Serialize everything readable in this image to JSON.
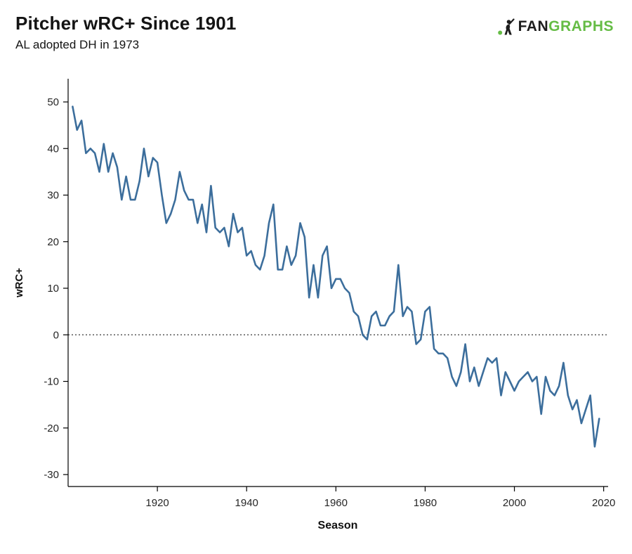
{
  "header": {
    "title": "Pitcher wRC+ Since 1901",
    "subtitle": "AL adopted DH in 1973"
  },
  "logo": {
    "text_dark": "FAN",
    "text_green": "GRAPHS",
    "dark_color": "#1d1d1d",
    "green_color": "#65bc45"
  },
  "chart_data": {
    "type": "line",
    "title": "Pitcher wRC+ Since 1901",
    "subtitle": "AL adopted DH in 1973",
    "xlabel": "Season",
    "ylabel": "wRC+",
    "x_start": 1901,
    "x_end": 2019,
    "xlim": [
      1900,
      2021
    ],
    "ylim": [
      -30,
      50
    ],
    "xticks": [
      1920,
      1940,
      1960,
      1980,
      2000,
      2020
    ],
    "yticks": [
      -30,
      -20,
      -10,
      0,
      10,
      20,
      30,
      40,
      50
    ],
    "grid": false,
    "legend": false,
    "reference_line": {
      "y": 0,
      "style": "dotted",
      "color": "#595959"
    },
    "line_color": "#3c6e9c",
    "values": [
      49,
      44,
      46,
      39,
      40,
      39,
      35,
      41,
      35,
      39,
      36,
      29,
      34,
      29,
      29,
      33,
      40,
      34,
      38,
      37,
      30,
      24,
      26,
      29,
      35,
      31,
      29,
      29,
      24,
      28,
      22,
      32,
      23,
      22,
      23,
      19,
      26,
      22,
      23,
      17,
      18,
      15,
      14,
      17,
      24,
      28,
      14,
      14,
      19,
      15,
      17,
      24,
      21,
      8,
      15,
      8,
      17,
      19,
      10,
      12,
      12,
      10,
      9,
      5,
      4,
      0,
      -1,
      4,
      5,
      2,
      2,
      4,
      5,
      15,
      4,
      6,
      5,
      -2,
      -1,
      5,
      6,
      -3,
      -4,
      -4,
      -5,
      -9,
      -11,
      -8,
      -2,
      -10,
      -7,
      -11,
      -8,
      -5,
      -6,
      -5,
      -13,
      -8,
      -10,
      -12,
      -10,
      -9,
      -8,
      -10,
      -9,
      -17,
      -9,
      -12,
      -13,
      -11,
      -6,
      -13,
      -16,
      -14,
      -19,
      -16,
      -13,
      -24,
      -18
    ]
  }
}
